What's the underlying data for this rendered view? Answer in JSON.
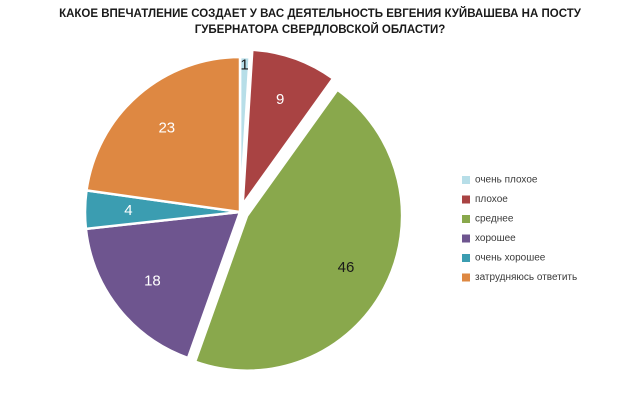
{
  "chart_data": {
    "type": "pie",
    "title": "КАКОЕ ВПЕЧАТЛЕНИЕ СОЗДАЕТ У ВАС ДЕЯТЕЛЬНОСТЬ ЕВГЕНИЯ КУЙВАШЕВА НА ПОСТУ ГУБЕРНАТОРА СВЕРДЛОВСКОЙ ОБЛАСТИ?",
    "categories": [
      "очень плохое",
      "плохое",
      "среднее",
      "хорошее",
      "очень хорошее",
      "затрудняюсь ответить"
    ],
    "values": [
      1,
      9,
      46,
      18,
      4,
      23
    ],
    "colors": [
      "#b7dee8",
      "#a94343",
      "#89a84c",
      "#6e558f",
      "#3b9db1",
      "#de8842"
    ],
    "label_colors": [
      "#1a1a1a",
      "#ffffff",
      "#1a1a1a",
      "#ffffff",
      "#ffffff",
      "#ffffff"
    ],
    "exploded_slices": [
      "плохое",
      "среднее"
    ],
    "legend_position": "right"
  }
}
